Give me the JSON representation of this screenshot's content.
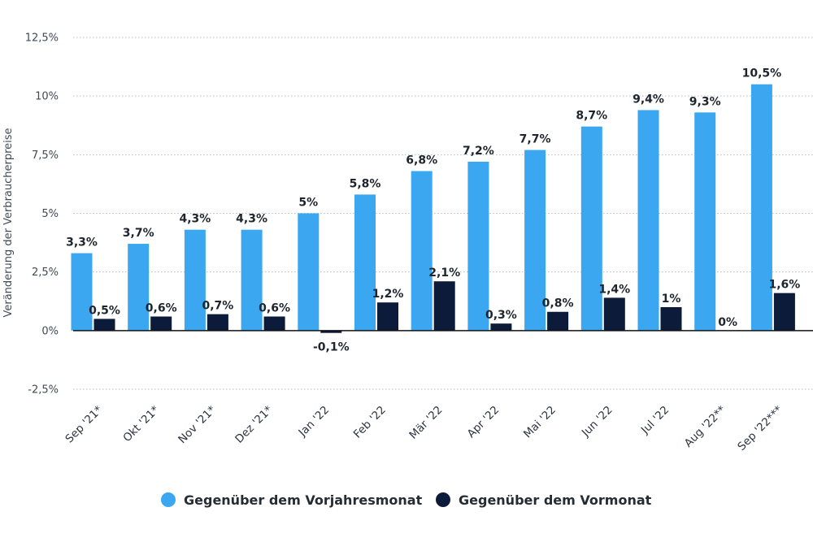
{
  "chart_data": {
    "type": "bar",
    "ylabel": "Veränderung der Verbraucherpreise",
    "ylim": [
      -2.5,
      12.5
    ],
    "yticks": [
      {
        "value": 12.5,
        "label": "12,5%"
      },
      {
        "value": 10,
        "label": "10%"
      },
      {
        "value": 7.5,
        "label": "7,5%"
      },
      {
        "value": 5,
        "label": "5%"
      },
      {
        "value": 2.5,
        "label": "2,5%"
      },
      {
        "value": 0,
        "label": "0%"
      },
      {
        "value": -2.5,
        "label": "-2,5%"
      }
    ],
    "grid": true,
    "legend_position": "bottom",
    "categories": [
      "Sep '21*",
      "Okt '21*",
      "Nov '21*",
      "Dez '21*",
      "Jan '22",
      "Feb '22",
      "Mär '22",
      "Apr '22",
      "Mai '22",
      "Jun '22",
      "Jul '22",
      "Aug '22**",
      "Sep '22***"
    ],
    "series": [
      {
        "name": "Gegenüber dem Vorjahresmonat",
        "color": "#3ba7f0",
        "values": [
          3.3,
          3.7,
          4.3,
          4.3,
          5.0,
          5.8,
          6.8,
          7.2,
          7.7,
          8.7,
          9.4,
          9.3,
          10.5
        ],
        "labels": [
          "3,3%",
          "3,7%",
          "4,3%",
          "4,3%",
          "5%",
          "5,8%",
          "6,8%",
          "7,2%",
          "7,7%",
          "8,7%",
          "9,4%",
          "9,3%",
          "10,5%"
        ]
      },
      {
        "name": "Gegenüber dem Vormonat",
        "color": "#0d1b3a",
        "values": [
          0.5,
          0.6,
          0.7,
          0.6,
          -0.1,
          1.2,
          2.1,
          0.3,
          0.8,
          1.4,
          1.0,
          0.0,
          1.6
        ],
        "labels": [
          "0,5%",
          "0,6%",
          "0,7%",
          "0,6%",
          "-0,1%",
          "1,2%",
          "2,1%",
          "0,3%",
          "0,8%",
          "1,4%",
          "1%",
          "0%",
          "1,6%"
        ]
      }
    ]
  }
}
